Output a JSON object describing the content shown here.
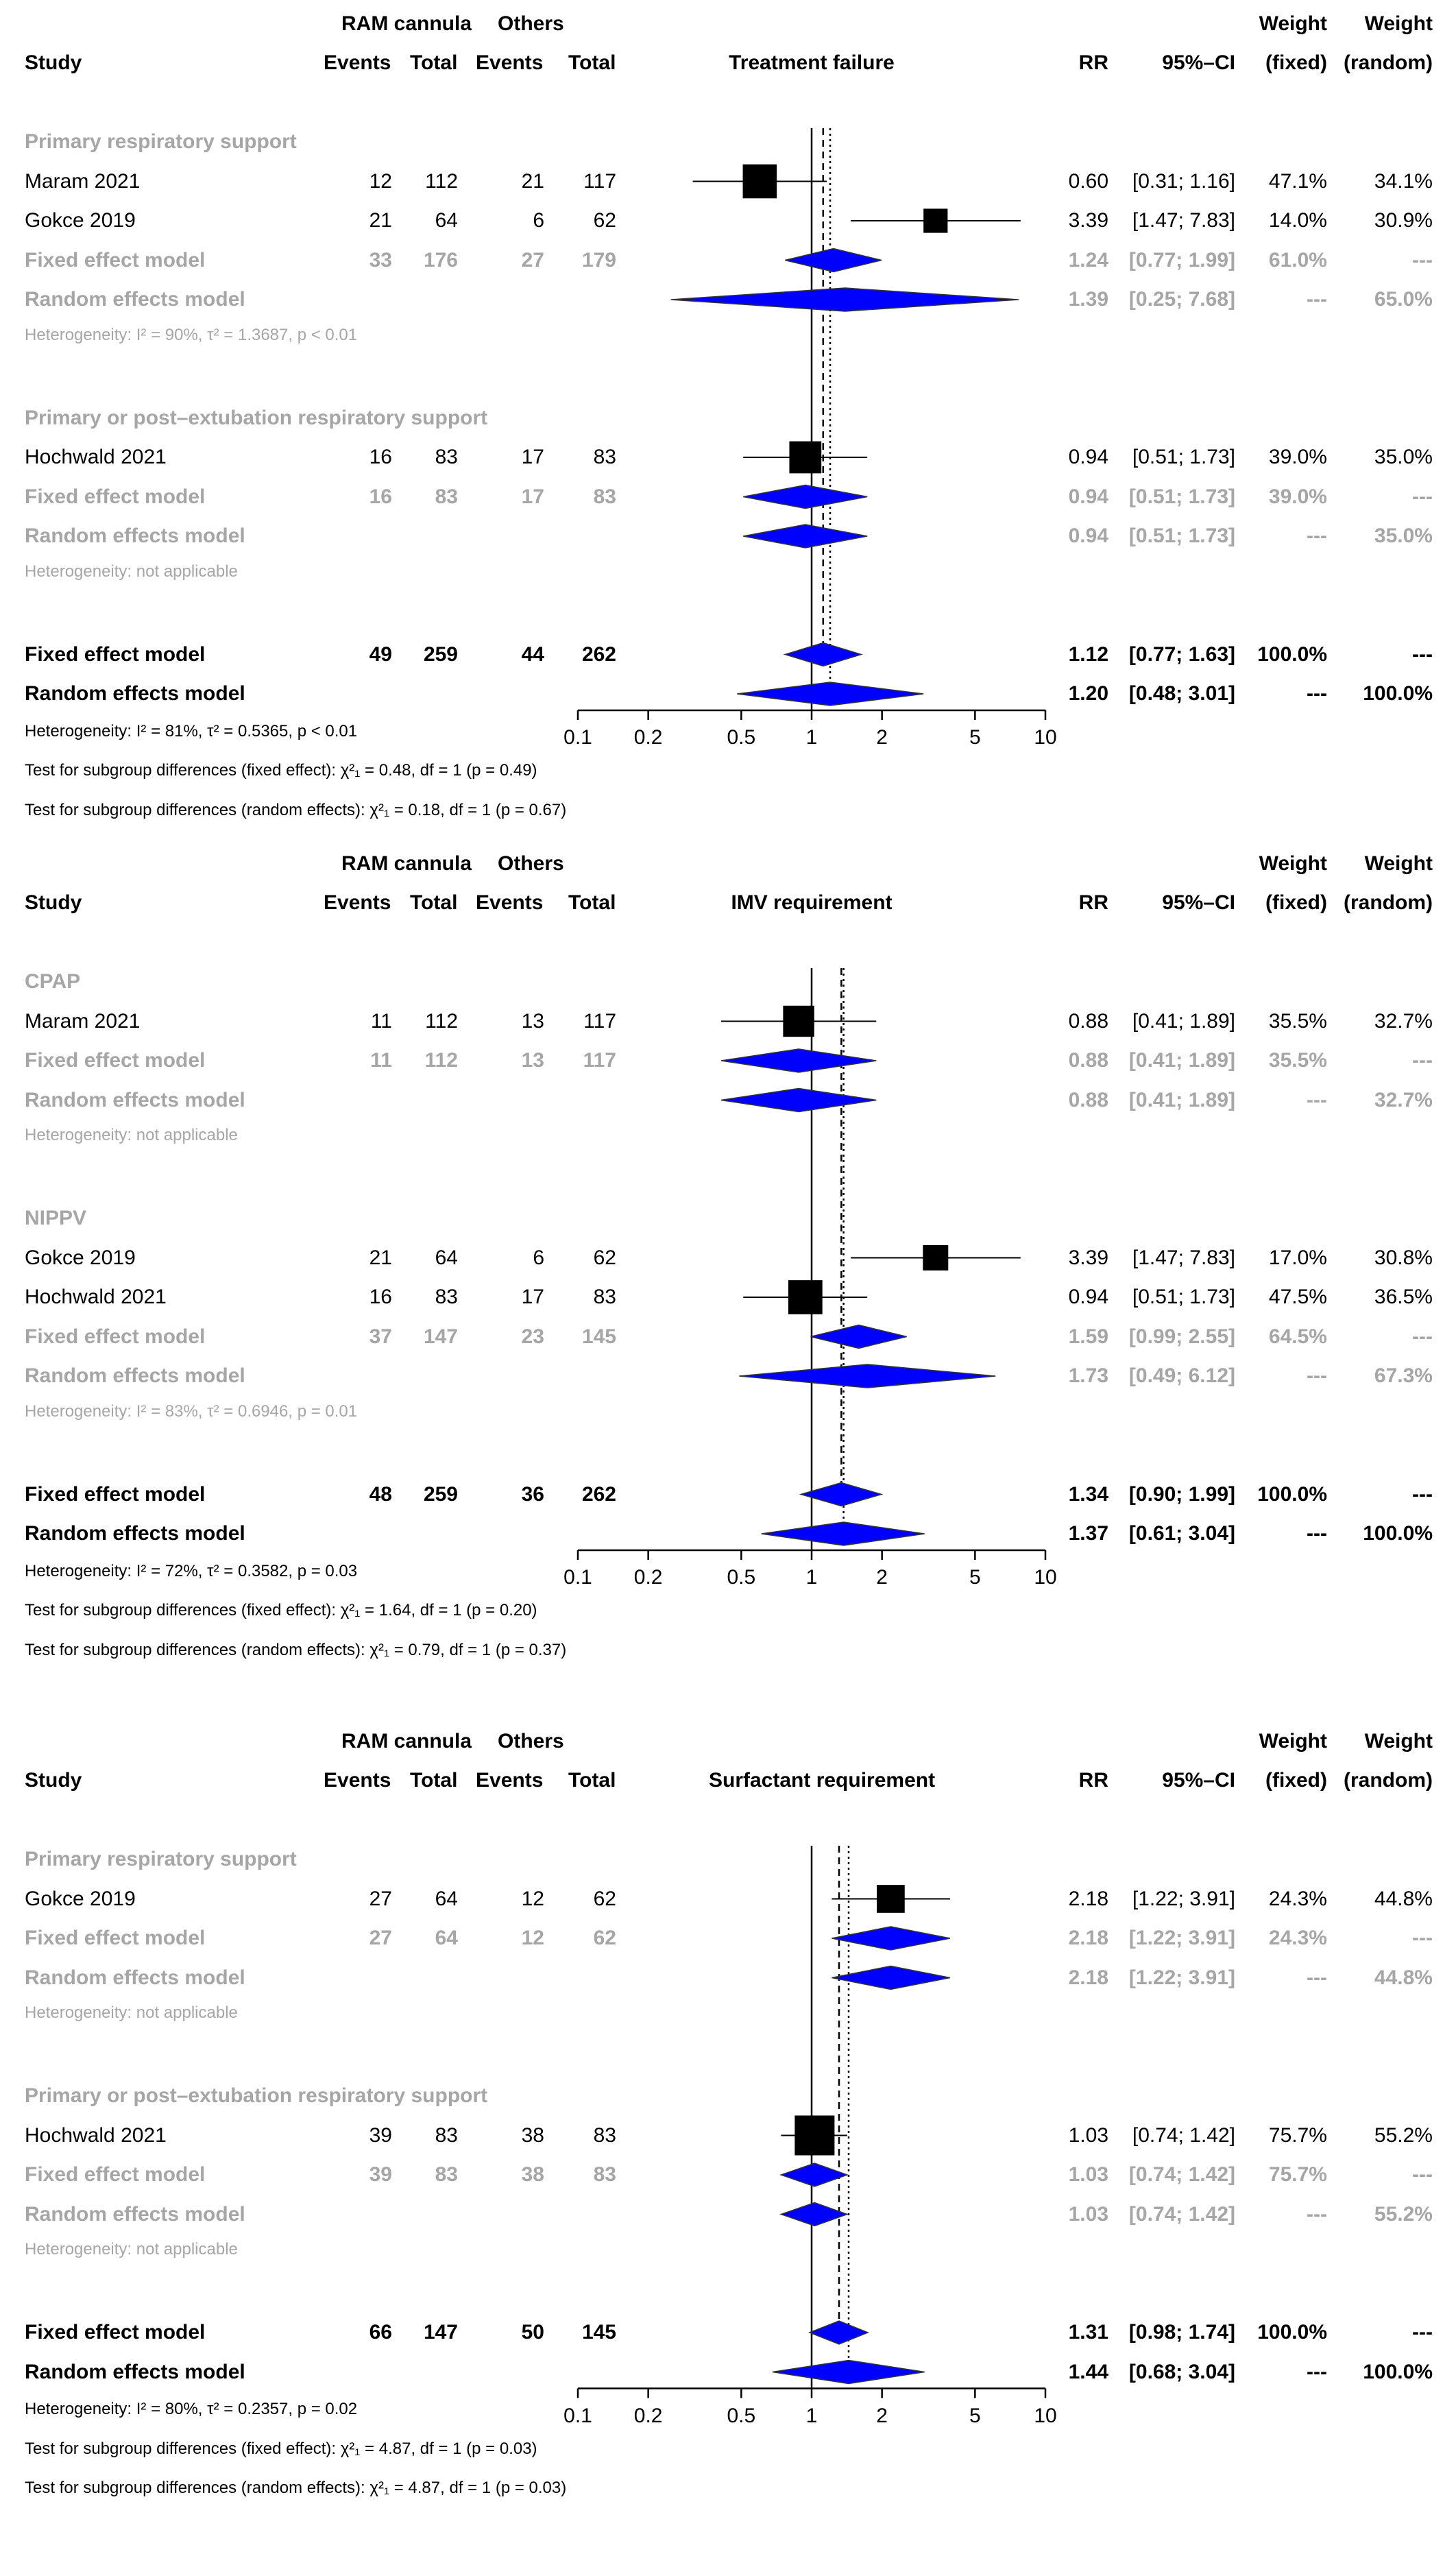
{
  "headers": {
    "group1": "RAM cannula",
    "group2": "Others",
    "study": "Study",
    "events": "Events",
    "total": "Total",
    "rr": "RR",
    "ci": "95%–CI",
    "weight": "Weight",
    "fixed": "(fixed)",
    "random": "(random)"
  },
  "axis": {
    "ticks": [
      "0.1",
      "0.2",
      "0.5",
      "1",
      "2",
      "5",
      "10"
    ],
    "tick_values": [
      0.1,
      0.2,
      0.5,
      1,
      2,
      5,
      10
    ],
    "scale": "log"
  },
  "colors": {
    "diamond": "#0000ff",
    "gray": "#a6a6a6",
    "square": "#000000"
  },
  "chart_data": [
    {
      "type": "forest",
      "title": "Treatment failure",
      "subgroups": [
        {
          "name": "Primary respiratory support",
          "studies": [
            {
              "study": "Maram 2021",
              "e1": "12",
              "n1": "112",
              "e2": "21",
              "n2": "117",
              "rr": 0.6,
              "lo": 0.31,
              "hi": 1.16,
              "rr_t": "0.60",
              "ci_t": "[0.31; 1.16]",
              "wf": "47.1%",
              "wr": "34.1%"
            },
            {
              "study": "Gokce 2019",
              "e1": "21",
              "n1": "64",
              "e2": "6",
              "n2": "62",
              "rr": 3.39,
              "lo": 1.47,
              "hi": 7.83,
              "rr_t": "3.39",
              "ci_t": "[1.47; 7.83]",
              "wf": "14.0%",
              "wr": "30.9%"
            }
          ],
          "fixed": {
            "label": "Fixed effect model",
            "e1": "33",
            "n1": "176",
            "e2": "27",
            "n2": "179",
            "rr": 1.24,
            "lo": 0.77,
            "hi": 1.99,
            "rr_t": "1.24",
            "ci_t": "[0.77; 1.99]",
            "wf": "61.0%",
            "wr": "---"
          },
          "random": {
            "label": "Random effects model",
            "rr": 1.39,
            "lo": 0.25,
            "hi": 7.68,
            "rr_t": "1.39",
            "ci_t": "[0.25; 7.68]",
            "wf": "---",
            "wr": "65.0%"
          },
          "het": "Heterogeneity: I² = 90%, τ² = 1.3687, p < 0.01"
        },
        {
          "name": "Primary or post–extubation respiratory support",
          "studies": [
            {
              "study": "Hochwald 2021",
              "e1": "16",
              "n1": "83",
              "e2": "17",
              "n2": "83",
              "rr": 0.94,
              "lo": 0.51,
              "hi": 1.73,
              "rr_t": "0.94",
              "ci_t": "[0.51; 1.73]",
              "wf": "39.0%",
              "wr": "35.0%"
            }
          ],
          "fixed": {
            "label": "Fixed effect model",
            "e1": "16",
            "n1": "83",
            "e2": "17",
            "n2": "83",
            "rr": 0.94,
            "lo": 0.51,
            "hi": 1.73,
            "rr_t": "0.94",
            "ci_t": "[0.51; 1.73]",
            "wf": "39.0%",
            "wr": "---"
          },
          "random": {
            "label": "Random effects model",
            "rr": 0.94,
            "lo": 0.51,
            "hi": 1.73,
            "rr_t": "0.94",
            "ci_t": "[0.51; 1.73]",
            "wf": "---",
            "wr": "35.0%"
          },
          "het": "Heterogeneity: not applicable"
        }
      ],
      "overall_fixed": {
        "label": "Fixed effect model",
        "e1": "49",
        "n1": "259",
        "e2": "44",
        "n2": "262",
        "rr": 1.12,
        "lo": 0.77,
        "hi": 1.63,
        "rr_t": "1.12",
        "ci_t": "[0.77; 1.63]",
        "wf": "100.0%",
        "wr": "---"
      },
      "overall_random": {
        "label": "Random effects model",
        "rr": 1.2,
        "lo": 0.48,
        "hi": 3.01,
        "rr_t": "1.20",
        "ci_t": "[0.48; 3.01]",
        "wf": "---",
        "wr": "100.0%"
      },
      "footer": [
        "Heterogeneity: I² = 81%, τ² = 0.5365, p < 0.01",
        "Test for subgroup differences (fixed effect): χ²₁ = 0.48, df = 1 (p = 0.49)",
        "Test for subgroup differences (random effects): χ²₁ = 0.18, df = 1 (p = 0.67)"
      ]
    },
    {
      "type": "forest",
      "title": "IMV requirement",
      "subgroups": [
        {
          "name": "CPAP",
          "studies": [
            {
              "study": "Maram 2021",
              "e1": "11",
              "n1": "112",
              "e2": "13",
              "n2": "117",
              "rr": 0.88,
              "lo": 0.41,
              "hi": 1.89,
              "rr_t": "0.88",
              "ci_t": "[0.41; 1.89]",
              "wf": "35.5%",
              "wr": "32.7%"
            }
          ],
          "fixed": {
            "label": "Fixed effect model",
            "e1": "11",
            "n1": "112",
            "e2": "13",
            "n2": "117",
            "rr": 0.88,
            "lo": 0.41,
            "hi": 1.89,
            "rr_t": "0.88",
            "ci_t": "[0.41; 1.89]",
            "wf": "35.5%",
            "wr": "---"
          },
          "random": {
            "label": "Random effects model",
            "rr": 0.88,
            "lo": 0.41,
            "hi": 1.89,
            "rr_t": "0.88",
            "ci_t": "[0.41; 1.89]",
            "wf": "---",
            "wr": "32.7%"
          },
          "het": "Heterogeneity: not applicable"
        },
        {
          "name": "NIPPV",
          "studies": [
            {
              "study": "Gokce 2019",
              "e1": "21",
              "n1": "64",
              "e2": "6",
              "n2": "62",
              "rr": 3.39,
              "lo": 1.47,
              "hi": 7.83,
              "rr_t": "3.39",
              "ci_t": "[1.47; 7.83]",
              "wf": "17.0%",
              "wr": "30.8%"
            },
            {
              "study": "Hochwald 2021",
              "e1": "16",
              "n1": "83",
              "e2": "17",
              "n2": "83",
              "rr": 0.94,
              "lo": 0.51,
              "hi": 1.73,
              "rr_t": "0.94",
              "ci_t": "[0.51; 1.73]",
              "wf": "47.5%",
              "wr": "36.5%"
            }
          ],
          "fixed": {
            "label": "Fixed effect model",
            "e1": "37",
            "n1": "147",
            "e2": "23",
            "n2": "145",
            "rr": 1.59,
            "lo": 0.99,
            "hi": 2.55,
            "rr_t": "1.59",
            "ci_t": "[0.99; 2.55]",
            "wf": "64.5%",
            "wr": "---"
          },
          "random": {
            "label": "Random effects model",
            "rr": 1.73,
            "lo": 0.49,
            "hi": 6.12,
            "rr_t": "1.73",
            "ci_t": "[0.49; 6.12]",
            "wf": "---",
            "wr": "67.3%"
          },
          "het": "Heterogeneity: I² = 83%, τ² = 0.6946, p = 0.01"
        }
      ],
      "overall_fixed": {
        "label": "Fixed effect model",
        "e1": "48",
        "n1": "259",
        "e2": "36",
        "n2": "262",
        "rr": 1.34,
        "lo": 0.9,
        "hi": 1.99,
        "rr_t": "1.34",
        "ci_t": "[0.90; 1.99]",
        "wf": "100.0%",
        "wr": "---"
      },
      "overall_random": {
        "label": "Random effects model",
        "rr": 1.37,
        "lo": 0.61,
        "hi": 3.04,
        "rr_t": "1.37",
        "ci_t": "[0.61; 3.04]",
        "wf": "---",
        "wr": "100.0%"
      },
      "footer": [
        "Heterogeneity: I² = 72%, τ² = 0.3582, p = 0.03",
        "Test for subgroup differences (fixed effect): χ²₁ = 1.64, df = 1 (p = 0.20)",
        "Test for subgroup differences (random effects): χ²₁ = 0.79, df = 1 (p = 0.37)"
      ]
    },
    {
      "type": "forest",
      "title": "Surfactant requirement",
      "subgroups": [
        {
          "name": "Primary respiratory support",
          "studies": [
            {
              "study": "Gokce 2019",
              "e1": "27",
              "n1": "64",
              "e2": "12",
              "n2": "62",
              "rr": 2.18,
              "lo": 1.22,
              "hi": 3.91,
              "rr_t": "2.18",
              "ci_t": "[1.22; 3.91]",
              "wf": "24.3%",
              "wr": "44.8%"
            }
          ],
          "fixed": {
            "label": "Fixed effect model",
            "e1": "27",
            "n1": "64",
            "e2": "12",
            "n2": "62",
            "rr": 2.18,
            "lo": 1.22,
            "hi": 3.91,
            "rr_t": "2.18",
            "ci_t": "[1.22; 3.91]",
            "wf": "24.3%",
            "wr": "---"
          },
          "random": {
            "label": "Random effects model",
            "rr": 2.18,
            "lo": 1.22,
            "hi": 3.91,
            "rr_t": "2.18",
            "ci_t": "[1.22; 3.91]",
            "wf": "---",
            "wr": "44.8%"
          },
          "het": "Heterogeneity: not applicable"
        },
        {
          "name": "Primary or post–extubation respiratory support",
          "studies": [
            {
              "study": "Hochwald 2021",
              "e1": "39",
              "n1": "83",
              "e2": "38",
              "n2": "83",
              "rr": 1.03,
              "lo": 0.74,
              "hi": 1.42,
              "rr_t": "1.03",
              "ci_t": "[0.74; 1.42]",
              "wf": "75.7%",
              "wr": "55.2%"
            }
          ],
          "fixed": {
            "label": "Fixed effect model",
            "e1": "39",
            "n1": "83",
            "e2": "38",
            "n2": "83",
            "rr": 1.03,
            "lo": 0.74,
            "hi": 1.42,
            "rr_t": "1.03",
            "ci_t": "[0.74; 1.42]",
            "wf": "75.7%",
            "wr": "---"
          },
          "random": {
            "label": "Random effects model",
            "rr": 1.03,
            "lo": 0.74,
            "hi": 1.42,
            "rr_t": "1.03",
            "ci_t": "[0.74; 1.42]",
            "wf": "---",
            "wr": "55.2%"
          },
          "het": "Heterogeneity: not applicable"
        }
      ],
      "overall_fixed": {
        "label": "Fixed effect model",
        "e1": "66",
        "n1": "147",
        "e2": "50",
        "n2": "145",
        "rr": 1.31,
        "lo": 0.98,
        "hi": 1.74,
        "rr_t": "1.31",
        "ci_t": "[0.98; 1.74]",
        "wf": "100.0%",
        "wr": "---"
      },
      "overall_random": {
        "label": "Random effects model",
        "rr": 1.44,
        "lo": 0.68,
        "hi": 3.04,
        "rr_t": "1.44",
        "ci_t": "[0.68; 3.04]",
        "wf": "---",
        "wr": "100.0%"
      },
      "footer": [
        "Heterogeneity: I² = 80%, τ² = 0.2357, p = 0.02",
        "Test for subgroup differences (fixed effect): χ²₁ = 4.87, df = 1 (p = 0.03)",
        "Test for subgroup differences (random effects): χ²₁ = 4.87, df = 1 (p = 0.03)"
      ]
    }
  ]
}
